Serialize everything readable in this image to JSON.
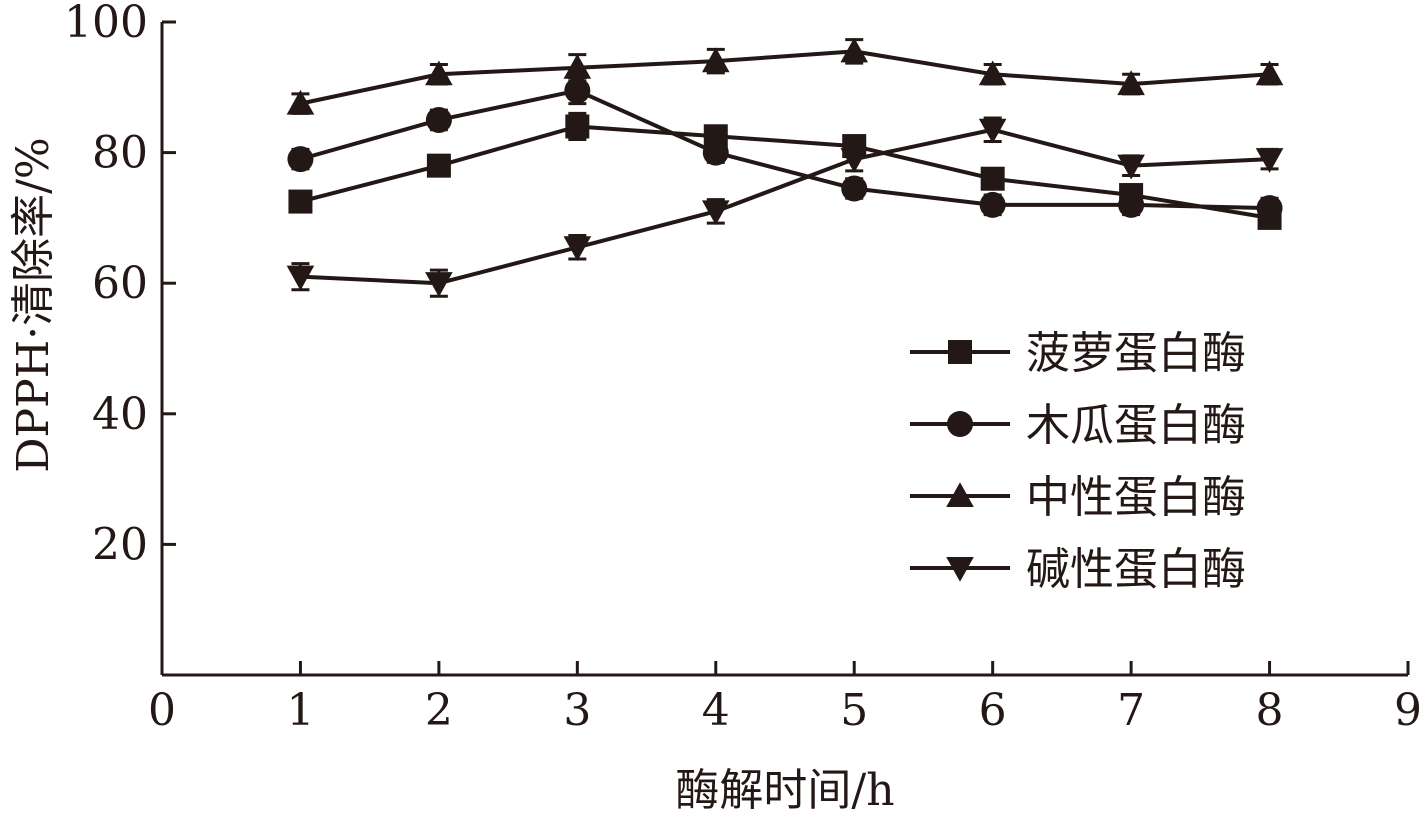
{
  "chart_data": {
    "type": "line",
    "title": "",
    "xlabel": "酶解时间/h",
    "ylabel": "DPPH·清除率/%",
    "xlim": [
      0,
      9
    ],
    "ylim": [
      0,
      100
    ],
    "xticks": [
      0,
      1,
      2,
      3,
      4,
      5,
      6,
      7,
      8,
      9
    ],
    "yticks": [
      20,
      40,
      60,
      80,
      100
    ],
    "x": [
      1,
      2,
      3,
      4,
      5,
      6,
      7,
      8
    ],
    "grid": false,
    "legend_position": "right",
    "series": [
      {
        "name": "菠萝蛋白酶",
        "marker": "square",
        "values": [
          72.5,
          78.0,
          84.0,
          82.5,
          81.0,
          76.0,
          73.5,
          70.0
        ],
        "errors": [
          1.5,
          1.5,
          2.0,
          1.5,
          1.5,
          1.5,
          1.5,
          1.5
        ]
      },
      {
        "name": "木瓜蛋白酶",
        "marker": "circle",
        "values": [
          79.0,
          85.0,
          89.5,
          80.0,
          74.5,
          72.0,
          72.0,
          71.5
        ],
        "errors": [
          1.5,
          1.5,
          2.0,
          1.5,
          1.5,
          1.5,
          1.5,
          1.5
        ]
      },
      {
        "name": "中性蛋白酶",
        "marker": "triangle-up",
        "values": [
          87.5,
          92.0,
          93.0,
          94.0,
          95.5,
          92.0,
          90.5,
          92.0
        ],
        "errors": [
          1.5,
          1.5,
          2.0,
          1.8,
          1.8,
          1.5,
          1.5,
          1.5
        ]
      },
      {
        "name": "碱性蛋白酶",
        "marker": "triangle-down",
        "values": [
          61.0,
          60.0,
          65.5,
          71.0,
          79.0,
          83.5,
          78.0,
          79.0
        ],
        "errors": [
          2.0,
          2.0,
          1.8,
          1.8,
          1.8,
          1.8,
          1.5,
          1.5
        ]
      }
    ],
    "colors": {
      "ink": "#231815",
      "background": "#ffffff"
    }
  }
}
